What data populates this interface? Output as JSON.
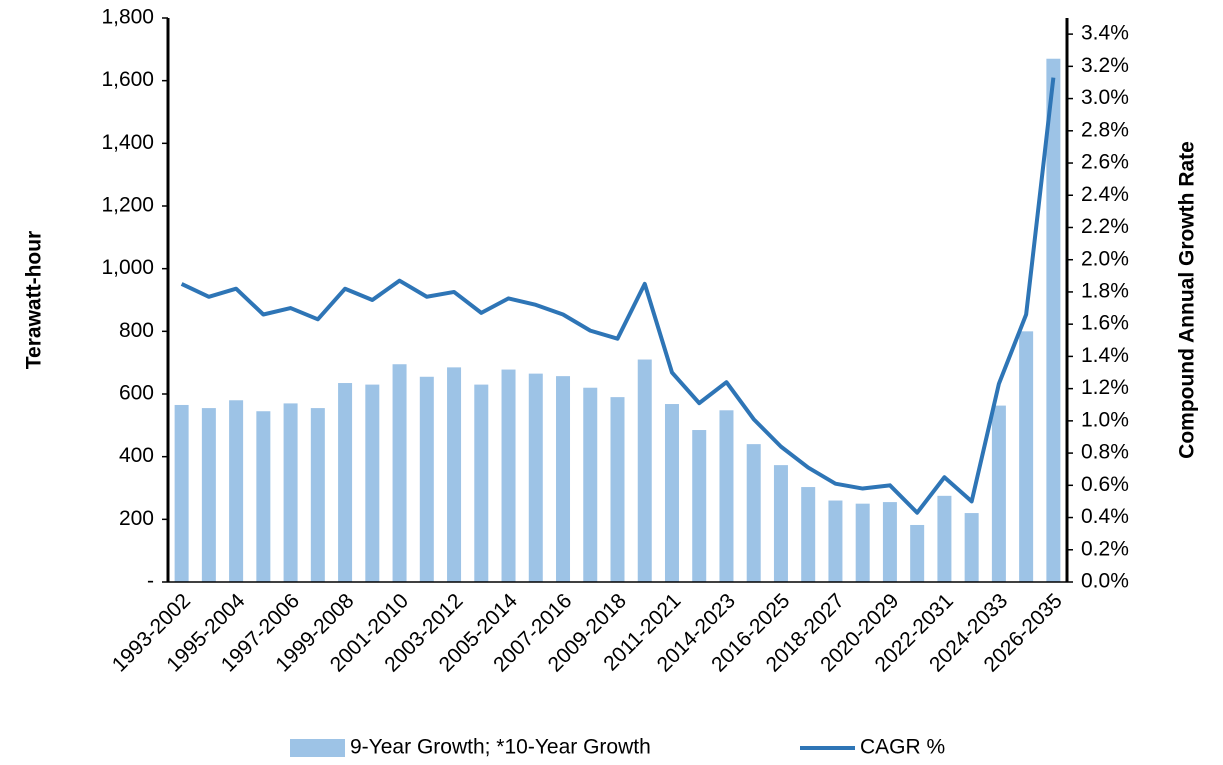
{
  "chart_data": {
    "type": "bar",
    "categories": [
      "1993-2002",
      null,
      "1995-2004",
      null,
      "1997-2006",
      null,
      "1999-2008",
      null,
      "2001-2010",
      null,
      "2003-2012",
      null,
      "2005-2014",
      null,
      "2007-2016",
      null,
      "2009-2018",
      null,
      "2011-2021",
      null,
      "2014-2023",
      null,
      "2016-2025",
      null,
      "2018-2027",
      null,
      "2020-2029",
      null,
      "2022-2031",
      null,
      "2024-2033",
      null,
      "2026-2035"
    ],
    "series": [
      {
        "name": "9-Year Growth; *10-Year Growth",
        "type": "bar",
        "color": "#9dc3e6",
        "values": [
          565,
          555,
          580,
          545,
          570,
          555,
          635,
          630,
          695,
          655,
          685,
          630,
          678,
          665,
          657,
          620,
          590,
          710,
          568,
          485,
          548,
          440,
          373,
          303,
          260,
          250,
          255,
          182,
          275,
          220,
          563,
          800,
          1670
        ]
      },
      {
        "name": "CAGR %",
        "type": "line",
        "axis": "y2",
        "color": "#2e75b6",
        "values": [
          1.85,
          1.77,
          1.82,
          1.66,
          1.7,
          1.63,
          1.82,
          1.75,
          1.87,
          1.77,
          1.8,
          1.67,
          1.76,
          1.72,
          1.66,
          1.56,
          1.51,
          1.85,
          1.3,
          1.11,
          1.24,
          1.01,
          0.84,
          0.71,
          0.61,
          0.58,
          0.6,
          0.43,
          0.65,
          0.5,
          1.23,
          1.66,
          3.13
        ]
      }
    ],
    "y_label": "Terawatt-hour",
    "y2_label": "Compound Annual Growth Rate",
    "ylim": [
      0,
      1800
    ],
    "yticks": [
      {
        "value": 0,
        "label": "-"
      },
      200,
      400,
      600,
      800,
      {
        "value": 1000,
        "label": "1,000"
      },
      {
        "value": 1200,
        "label": "1,200"
      },
      {
        "value": 1400,
        "label": "1,400"
      },
      {
        "value": 1600,
        "label": "1,600"
      },
      {
        "value": 1800,
        "label": "1,800"
      }
    ],
    "y2lim": [
      0,
      3.5
    ],
    "y2ticks": [
      {
        "value": 0,
        "label": "0.0%"
      },
      {
        "value": 0.2,
        "label": "0.2%"
      },
      {
        "value": 0.4,
        "label": "0.4%"
      },
      {
        "value": 0.6,
        "label": "0.6%"
      },
      {
        "value": 0.8,
        "label": "0.8%"
      },
      {
        "value": 1.0,
        "label": "1.0%"
      },
      {
        "value": 1.2,
        "label": "1.2%"
      },
      {
        "value": 1.4,
        "label": "1.4%"
      },
      {
        "value": 1.6,
        "label": "1.6%"
      },
      {
        "value": 1.8,
        "label": "1.8%"
      },
      {
        "value": 2.0,
        "label": "2.0%"
      },
      {
        "value": 2.2,
        "label": "2.2%"
      },
      {
        "value": 2.4,
        "label": "2.4%"
      },
      {
        "value": 2.6,
        "label": "2.6%"
      },
      {
        "value": 2.8,
        "label": "2.8%"
      },
      {
        "value": 3.0,
        "label": "3.0%"
      },
      {
        "value": 3.2,
        "label": "3.2%"
      },
      {
        "value": 3.4,
        "label": "3.4%"
      }
    ],
    "grid": false,
    "legend": "bottom"
  }
}
